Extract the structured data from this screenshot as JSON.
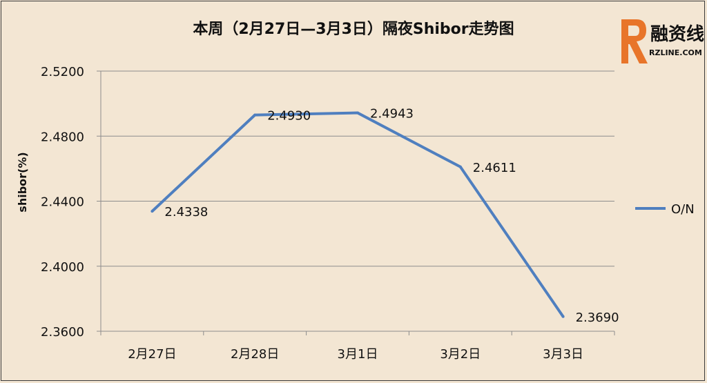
{
  "chart_data": {
    "type": "line",
    "title": "本周（2月27日—3月3日）隔夜Shibor走势图",
    "ylabel": "shibor(%)",
    "xlabel": "",
    "categories": [
      "2月27日",
      "2月28日",
      "3月1日",
      "3月2日",
      "3月3日"
    ],
    "series": [
      {
        "name": "O/N",
        "values": [
          2.4338,
          2.493,
          2.4943,
          2.4611,
          2.369
        ],
        "labels": [
          "2.4338",
          "2.4930",
          "2.4943",
          "2.4611",
          "2.3690"
        ],
        "color": "#4f7fbf"
      }
    ],
    "ylim": [
      2.36,
      2.52
    ],
    "yticks": [
      "2.5200",
      "2.4800",
      "2.4400",
      "2.4000",
      "2.3600"
    ],
    "grid": true,
    "legend_position": "right"
  },
  "logo": {
    "text_cn": "融资线",
    "text_en": "RZLINE.COM",
    "color": "#e8752a"
  }
}
